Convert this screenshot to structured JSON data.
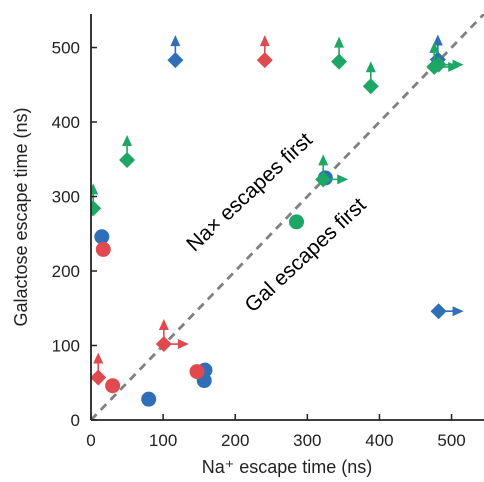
{
  "chart_data": {
    "type": "scatter",
    "title": "",
    "xlabel": "Na⁺  escape time (ns)",
    "ylabel": "Galactose escape time (ns)",
    "xlim": [
      0,
      545
    ],
    "ylim": [
      0,
      545
    ],
    "xticks": [
      "0",
      "100",
      "200",
      "300",
      "400",
      "500"
    ],
    "yticks": [
      "0",
      "100",
      "200",
      "300",
      "400",
      "500"
    ],
    "grid": false,
    "legend": "none",
    "diagonal": {
      "style": "dashed",
      "color": "#808080"
    },
    "annotations": [
      {
        "text": "Na×  escapes first",
        "side": "above-diagonal"
      },
      {
        "text": "Gal escapes first",
        "side": "below-diagonal"
      }
    ],
    "colors": {
      "blue": "#2e6fb7",
      "red": "#e04a4f",
      "green": "#1ea665"
    },
    "series": [
      {
        "color": "blue",
        "points": [
          {
            "x": 15,
            "y": 246,
            "marker": "circle"
          },
          {
            "x": 80,
            "y": 28,
            "marker": "circle"
          },
          {
            "x": 157,
            "y": 53,
            "marker": "circle"
          },
          {
            "x": 158,
            "y": 67,
            "marker": "circle"
          },
          {
            "x": 325,
            "y": 325,
            "marker": "circle"
          },
          {
            "x": 117,
            "y": 483,
            "marker": "diamond",
            "censored_y": true
          },
          {
            "x": 481,
            "y": 484,
            "marker": "diamond",
            "censored_y": true
          },
          {
            "x": 482,
            "y": 146,
            "marker": "diamond",
            "censored_x": true
          }
        ]
      },
      {
        "color": "red",
        "points": [
          {
            "x": 17,
            "y": 229,
            "marker": "circle"
          },
          {
            "x": 30,
            "y": 46,
            "marker": "circle"
          },
          {
            "x": 147,
            "y": 65,
            "marker": "circle"
          },
          {
            "x": 10,
            "y": 57,
            "marker": "diamond",
            "censored_y": true
          },
          {
            "x": 101,
            "y": 102,
            "marker": "diamond",
            "censored_x": true,
            "censored_y": true
          },
          {
            "x": 241,
            "y": 483,
            "marker": "diamond",
            "censored_y": true
          }
        ]
      },
      {
        "color": "green",
        "points": [
          {
            "x": 285,
            "y": 266,
            "marker": "circle"
          },
          {
            "x": 3,
            "y": 284,
            "marker": "diamond",
            "censored_y": true
          },
          {
            "x": 50,
            "y": 349,
            "marker": "diamond",
            "censored_y": true
          },
          {
            "x": 322,
            "y": 323,
            "marker": "diamond",
            "censored_x": true,
            "censored_y": true
          },
          {
            "x": 344,
            "y": 481,
            "marker": "diamond",
            "censored_y": true
          },
          {
            "x": 388,
            "y": 448,
            "marker": "diamond",
            "censored_y": true
          },
          {
            "x": 476,
            "y": 474,
            "marker": "diamond",
            "censored_x": true,
            "censored_y": true
          },
          {
            "x": 482,
            "y": 477,
            "marker": "diamond",
            "censored_x": true
          }
        ]
      }
    ]
  }
}
